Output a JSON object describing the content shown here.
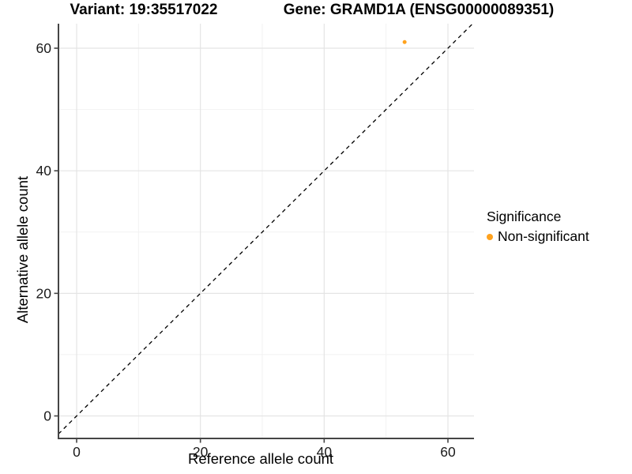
{
  "chart_data": {
    "type": "scatter",
    "titles": {
      "variant": "Variant: 19:35517022",
      "gene": "Gene: GRAMD1A (ENSG00000089351)"
    },
    "xlabel": "Reference allele count",
    "ylabel": "Alternative allele count",
    "xticks": [
      0,
      20,
      40,
      60
    ],
    "yticks": [
      0,
      20,
      40,
      60
    ],
    "xlim": [
      -2.94,
      64.21
    ],
    "ylim": [
      -3.67,
      64.0
    ],
    "grid": {
      "major": true,
      "minor": true
    },
    "identity_line": {
      "slope": 1,
      "intercept": 0,
      "style": "dashed",
      "color": "#000000"
    },
    "series": [
      {
        "name": "Non-significant",
        "color": "#FFA21E",
        "points": [
          {
            "x": 53,
            "y": 61
          }
        ]
      }
    ],
    "legend": {
      "title": "Significance",
      "position": "right",
      "items": [
        {
          "label": "Non-significant",
          "color": "#FFA21E"
        }
      ]
    },
    "colors": {
      "grid_major": "#E4E4E4",
      "grid_minor": "#F2F2F2",
      "axis_line": "#454545",
      "background": "#FFFFFF"
    }
  }
}
